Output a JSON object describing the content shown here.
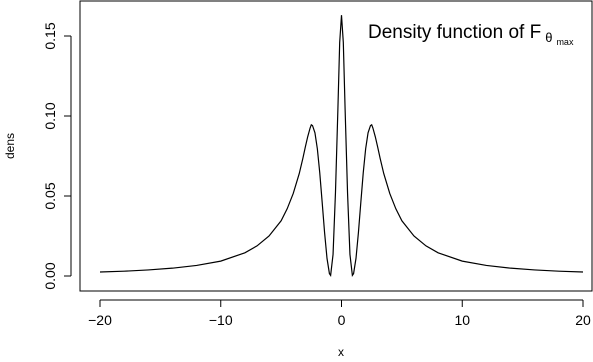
{
  "chart_data": {
    "type": "line",
    "title": {
      "text": "Density function of F",
      "subscript": "θ",
      "sub_subscript": "max"
    },
    "xlabel": "x",
    "ylabel": "dens",
    "xlim": [
      -20,
      20
    ],
    "ylim": [
      0,
      0.165
    ],
    "xticks": [
      -20,
      -10,
      0,
      10,
      20
    ],
    "xtick_labels": [
      "−20",
      "−10",
      "0",
      "10",
      "20"
    ],
    "yticks": [
      0,
      0.05,
      0.1,
      0.15
    ],
    "ytick_labels": [
      "0.00",
      "0.05",
      "0.10",
      "0.15"
    ],
    "grid": false,
    "series": [
      {
        "x": [
          -20,
          -18,
          -16,
          -14,
          -12,
          -10,
          -8,
          -7,
          -6,
          -5,
          -4.5,
          -4,
          -3.5,
          -3.2,
          -3,
          -2.8,
          -2.6,
          -2.5,
          -2.4,
          -2.2,
          -2,
          -1.8,
          -1.6,
          -1.4,
          -1.2,
          -1.0,
          -0.9,
          -0.7,
          -0.5,
          -0.3,
          -0.15,
          0,
          0.15,
          0.3,
          0.5,
          0.7,
          0.9,
          1.0,
          1.2,
          1.4,
          1.6,
          1.8,
          2,
          2.2,
          2.4,
          2.5,
          2.6,
          2.8,
          3,
          3.2,
          3.5,
          4,
          4.5,
          5,
          6,
          7,
          8,
          10,
          12,
          14,
          16,
          18,
          20
        ],
        "y": [
          0.0025,
          0.003,
          0.0038,
          0.0049,
          0.0066,
          0.0093,
          0.0145,
          0.0188,
          0.025,
          0.0345,
          0.042,
          0.0515,
          0.064,
          0.0735,
          0.0805,
          0.087,
          0.0925,
          0.0945,
          0.094,
          0.0895,
          0.0795,
          0.0645,
          0.046,
          0.027,
          0.011,
          0.0015,
          0.0004,
          0.0135,
          0.052,
          0.104,
          0.146,
          0.163,
          0.146,
          0.104,
          0.052,
          0.0135,
          0.0004,
          0.0015,
          0.011,
          0.027,
          0.046,
          0.0645,
          0.0795,
          0.0895,
          0.094,
          0.0945,
          0.0925,
          0.087,
          0.0805,
          0.0735,
          0.064,
          0.0515,
          0.042,
          0.0345,
          0.025,
          0.0188,
          0.0145,
          0.0093,
          0.0066,
          0.0049,
          0.0038,
          0.003,
          0.0025
        ]
      }
    ]
  }
}
